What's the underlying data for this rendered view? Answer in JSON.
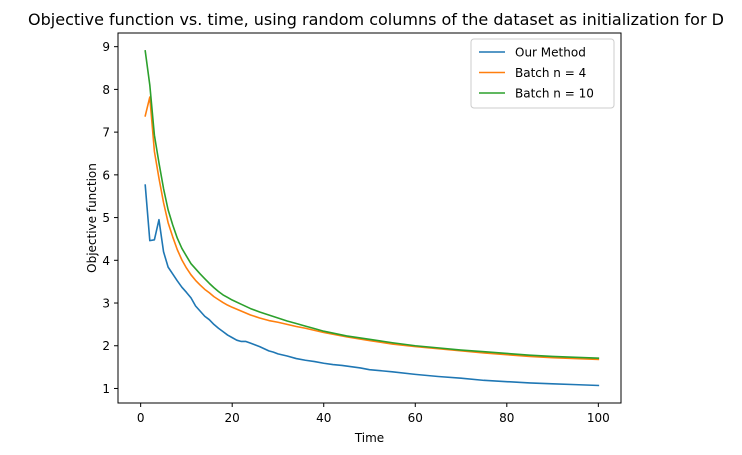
{
  "chart_data": {
    "type": "line",
    "title": "Objective function vs. time, using random columns of the dataset as initialization for D",
    "xlabel": "Time",
    "ylabel": "Objective function",
    "xlim": [
      -4.95,
      104.95
    ],
    "ylim": [
      0.66,
      9.32
    ],
    "xticks": [
      0,
      20,
      40,
      60,
      80,
      100
    ],
    "yticks": [
      1,
      2,
      3,
      4,
      5,
      6,
      7,
      8,
      9
    ],
    "grid": false,
    "legend_position": "top-right",
    "series": [
      {
        "name": "Our Method",
        "color": "#1f77b4",
        "x": [
          1,
          2,
          3,
          4,
          5,
          6,
          7,
          8,
          9,
          10,
          11,
          12,
          13,
          14,
          15,
          16,
          17,
          18,
          19,
          20,
          21,
          22,
          23,
          24,
          25,
          26,
          27,
          28,
          29,
          30,
          32,
          34,
          36,
          38,
          40,
          42,
          44,
          46,
          48,
          50,
          55,
          60,
          65,
          70,
          75,
          80,
          85,
          90,
          95,
          100
        ],
        "y": [
          5.76,
          4.46,
          4.48,
          4.95,
          4.2,
          3.84,
          3.68,
          3.52,
          3.37,
          3.25,
          3.12,
          2.93,
          2.81,
          2.69,
          2.61,
          2.5,
          2.41,
          2.33,
          2.25,
          2.19,
          2.13,
          2.1,
          2.1,
          2.06,
          2.02,
          1.98,
          1.93,
          1.88,
          1.85,
          1.81,
          1.76,
          1.7,
          1.66,
          1.63,
          1.59,
          1.56,
          1.54,
          1.51,
          1.48,
          1.44,
          1.39,
          1.33,
          1.28,
          1.24,
          1.19,
          1.16,
          1.13,
          1.11,
          1.09,
          1.07
        ]
      },
      {
        "name": "Batch n = 4",
        "color": "#ff7f0e",
        "x": [
          1,
          2,
          3,
          4,
          5,
          6,
          7,
          8,
          9,
          10,
          11,
          12,
          13,
          14,
          15,
          16,
          17,
          18,
          19,
          20,
          22,
          24,
          26,
          28,
          30,
          32,
          34,
          36,
          38,
          40,
          45,
          50,
          55,
          60,
          65,
          70,
          75,
          80,
          85,
          90,
          95,
          100
        ],
        "y": [
          7.38,
          7.82,
          6.55,
          5.92,
          5.35,
          4.88,
          4.55,
          4.25,
          4.01,
          3.82,
          3.66,
          3.53,
          3.42,
          3.32,
          3.24,
          3.15,
          3.08,
          3.01,
          2.95,
          2.9,
          2.81,
          2.72,
          2.65,
          2.59,
          2.55,
          2.5,
          2.45,
          2.41,
          2.36,
          2.31,
          2.21,
          2.12,
          2.04,
          1.98,
          1.93,
          1.88,
          1.83,
          1.79,
          1.75,
          1.72,
          1.7,
          1.68
        ]
      },
      {
        "name": "Batch n = 10",
        "color": "#2ca02c",
        "x": [
          1,
          2,
          3,
          4,
          5,
          6,
          7,
          8,
          9,
          10,
          11,
          12,
          13,
          14,
          15,
          16,
          17,
          18,
          19,
          20,
          22,
          24,
          26,
          28,
          30,
          32,
          34,
          36,
          38,
          40,
          45,
          50,
          55,
          60,
          65,
          70,
          75,
          80,
          85,
          90,
          95,
          100
        ],
        "y": [
          8.9,
          8.1,
          6.93,
          6.28,
          5.68,
          5.18,
          4.83,
          4.52,
          4.28,
          4.1,
          3.92,
          3.8,
          3.68,
          3.57,
          3.46,
          3.36,
          3.27,
          3.19,
          3.13,
          3.07,
          2.97,
          2.87,
          2.79,
          2.72,
          2.65,
          2.58,
          2.52,
          2.46,
          2.4,
          2.34,
          2.23,
          2.15,
          2.07,
          2.0,
          1.95,
          1.9,
          1.86,
          1.82,
          1.78,
          1.75,
          1.73,
          1.71
        ]
      }
    ]
  }
}
